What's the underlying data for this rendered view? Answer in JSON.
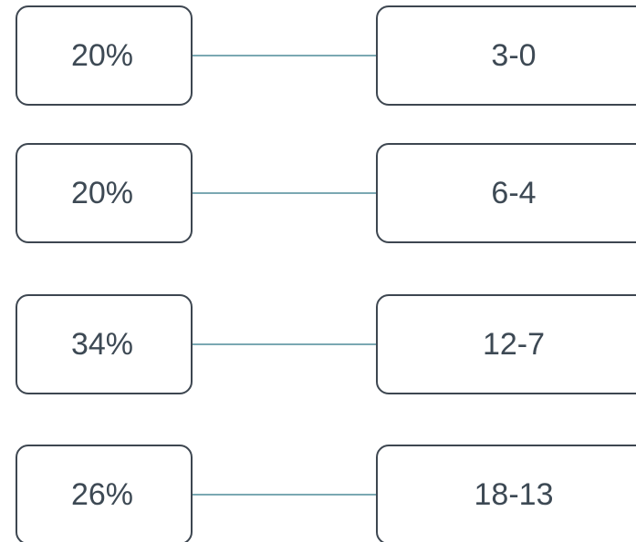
{
  "rows": [
    {
      "left": "20%",
      "right": "3-0"
    },
    {
      "left": "20%",
      "right": "6-4"
    },
    {
      "left": "34%",
      "right": "12-7"
    },
    {
      "left": "26%",
      "right": "18-13"
    }
  ]
}
